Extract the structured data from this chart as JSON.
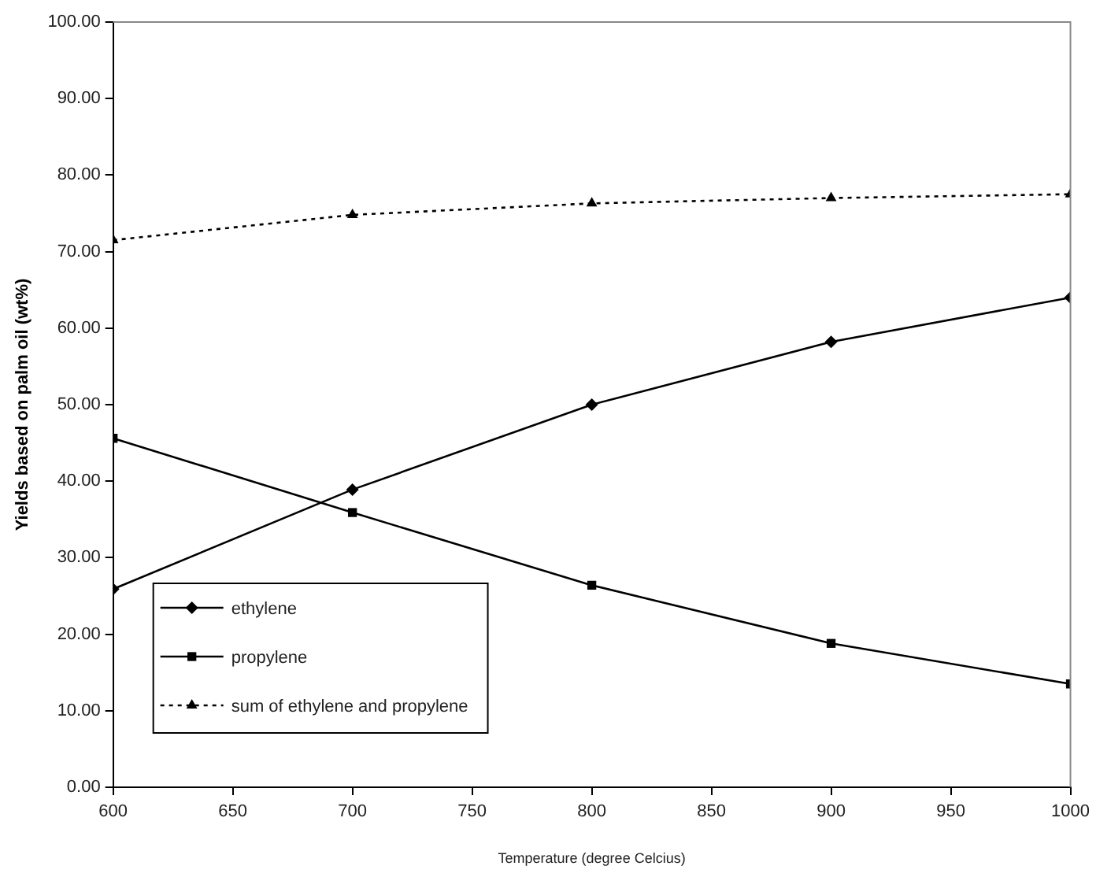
{
  "chart_data": {
    "type": "line",
    "xlabel": "Temperature (degree Celcius)",
    "ylabel": "Yields based on palm oil (wt%)",
    "x": [
      600,
      700,
      800,
      900,
      1000
    ],
    "series": [
      {
        "name": "ethylene",
        "color": "#000000",
        "values": [
          25.9,
          38.9,
          50.0,
          58.2,
          64.0
        ],
        "marker": "diamond",
        "line_style": "solid"
      },
      {
        "name": "propylene",
        "color": "#000000",
        "values": [
          45.6,
          35.9,
          26.4,
          18.8,
          13.5
        ],
        "marker": "square",
        "line_style": "solid"
      },
      {
        "name": "sum of ethylene and propylene",
        "color": "#000000",
        "values": [
          71.5,
          74.8,
          76.3,
          77.0,
          77.5
        ],
        "marker": "triangle",
        "line_style": "dotted"
      }
    ],
    "xlim": [
      600,
      1000
    ],
    "xticks": [
      600,
      650,
      700,
      750,
      800,
      850,
      900,
      950,
      1000
    ],
    "ylim": [
      0,
      100
    ],
    "yticks": [
      {
        "value": 0,
        "label": "0.00"
      },
      {
        "value": 10,
        "label": "10.00"
      },
      {
        "value": 20,
        "label": "20.00"
      },
      {
        "value": 30,
        "label": "30.00"
      },
      {
        "value": 40,
        "label": "40.00"
      },
      {
        "value": 50,
        "label": "50.00"
      },
      {
        "value": 60,
        "label": "60.00"
      },
      {
        "value": 70,
        "label": "70.00"
      },
      {
        "value": 80,
        "label": "80.00"
      },
      {
        "value": 90,
        "label": "90.00"
      },
      {
        "value": 100,
        "label": "100.00"
      }
    ],
    "grid": false,
    "legend": "bottom left"
  }
}
